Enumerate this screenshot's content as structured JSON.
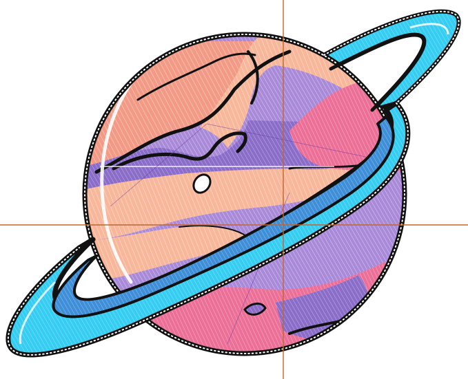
{
  "artwork": {
    "subject": "saturn-planet-illustration",
    "style": "hatched-line-art",
    "colors": {
      "outline": "#111111",
      "bead": "#ffffff",
      "salmon": "#f29a86",
      "peach": "#f8b79a",
      "lavender": "#a98ad9",
      "violet": "#8a6cc9",
      "pink": "#ec6f98",
      "ring_cyan": "#35cdf2",
      "ring_blue": "#3f8fd8",
      "ring_pale": "#bfeaf7",
      "guide": "#c0662a",
      "highlight": "#ffffff"
    }
  },
  "guides": {
    "vertical_visible": true,
    "horizontal_visible": true
  }
}
